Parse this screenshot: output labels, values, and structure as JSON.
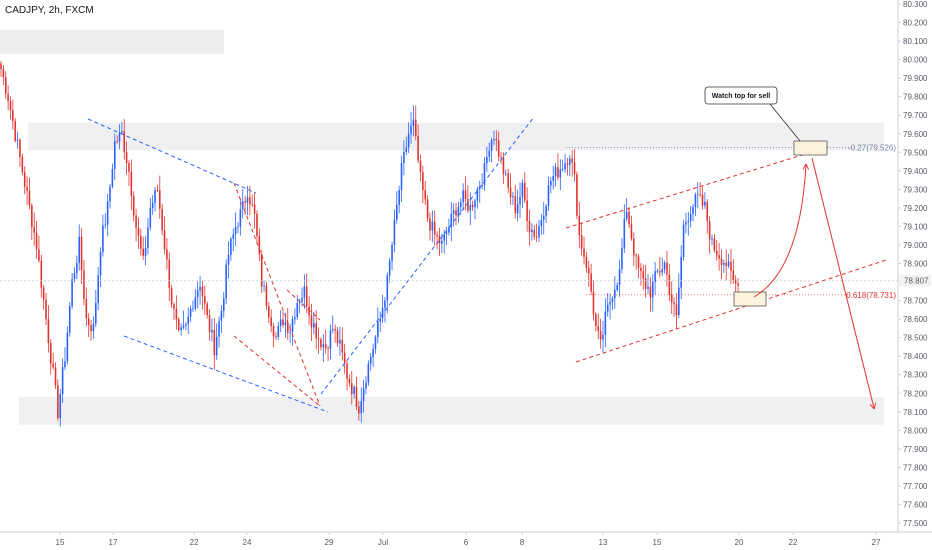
{
  "header": {
    "symbol_line": "CADJPY, 2h, FXCM"
  },
  "annotations": {
    "watch_note": "Watch top for sell",
    "fib_upper": "-0.27(79.526)",
    "fib_lower": "0.618(78.731)",
    "price_tag": "78.807"
  },
  "colors": {
    "bull": "#2962ff",
    "bear": "#e0342f",
    "zone": "#f0f0f2",
    "blue_trend": "#2962ff",
    "red_trend": "#e0342f",
    "note_fill": "#fdf3dc",
    "price_tag_bg": "#f2f2f2"
  },
  "chart_data": {
    "type": "candlestick",
    "y_axis": {
      "ticks": [
        "77.500",
        "77.600",
        "77.700",
        "77.800",
        "77.900",
        "78.000",
        "78.100",
        "78.200",
        "78.300",
        "78.400",
        "78.500",
        "78.600",
        "78.700",
        "78.800",
        "78.900",
        "79.000",
        "79.100",
        "79.200",
        "79.300",
        "79.400",
        "79.500",
        "79.600",
        "79.700",
        "79.800",
        "79.900",
        "80.000",
        "80.100",
        "80.200",
        "80.300"
      ],
      "range": [
        77.45,
        80.33
      ]
    },
    "x_axis": {
      "ticks": [
        "15",
        "17",
        "22",
        "24",
        "29",
        "Jul",
        "6",
        "8",
        "13",
        "15",
        "20",
        "22",
        "27"
      ]
    },
    "swing_path": [
      [
        0,
        79.95
      ],
      [
        3,
        79.8
      ],
      [
        6,
        79.6
      ],
      [
        9,
        79.4
      ],
      [
        12,
        79.2
      ],
      [
        15,
        79.0
      ],
      [
        18,
        78.7
      ],
      [
        21,
        78.4
      ],
      [
        24,
        78.1
      ],
      [
        27,
        78.4
      ],
      [
        30,
        78.8
      ],
      [
        33,
        79.0
      ],
      [
        36,
        78.6
      ],
      [
        39,
        78.55
      ],
      [
        42,
        79.0
      ],
      [
        45,
        79.2
      ],
      [
        48,
        79.55
      ],
      [
        51,
        79.6
      ],
      [
        54,
        79.4
      ],
      [
        57,
        79.1
      ],
      [
        60,
        78.9
      ],
      [
        63,
        79.2
      ],
      [
        66,
        79.3
      ],
      [
        69,
        79.0
      ],
      [
        72,
        78.7
      ],
      [
        75,
        78.5
      ],
      [
        78,
        78.55
      ],
      [
        81,
        78.7
      ],
      [
        84,
        78.8
      ],
      [
        87,
        78.6
      ],
      [
        90,
        78.45
      ],
      [
        93,
        78.65
      ],
      [
        96,
        78.95
      ],
      [
        99,
        79.1
      ],
      [
        102,
        79.2
      ],
      [
        104,
        79.3
      ],
      [
        107,
        79.15
      ],
      [
        110,
        78.8
      ],
      [
        113,
        78.65
      ],
      [
        116,
        78.5
      ],
      [
        119,
        78.6
      ],
      [
        122,
        78.55
      ],
      [
        125,
        78.7
      ],
      [
        128,
        78.75
      ],
      [
        131,
        78.6
      ],
      [
        134,
        78.5
      ],
      [
        137,
        78.45
      ],
      [
        140,
        78.55
      ],
      [
        143,
        78.45
      ],
      [
        146,
        78.3
      ],
      [
        149,
        78.2
      ],
      [
        151,
        78.13
      ],
      [
        154,
        78.3
      ],
      [
        157,
        78.45
      ],
      [
        160,
        78.6
      ],
      [
        163,
        78.8
      ],
      [
        166,
        79.1
      ],
      [
        169,
        79.4
      ],
      [
        172,
        79.6
      ],
      [
        174,
        79.65
      ],
      [
        177,
        79.35
      ],
      [
        180,
        79.15
      ],
      [
        183,
        79.05
      ],
      [
        186,
        79.0
      ],
      [
        189,
        79.1
      ],
      [
        192,
        79.2
      ],
      [
        195,
        79.25
      ],
      [
        198,
        79.2
      ],
      [
        201,
        79.3
      ],
      [
        204,
        79.4
      ],
      [
        206,
        79.55
      ],
      [
        208,
        79.6
      ],
      [
        211,
        79.45
      ],
      [
        214,
        79.3
      ],
      [
        217,
        79.2
      ],
      [
        220,
        79.3
      ],
      [
        223,
        79.1
      ],
      [
        226,
        79.05
      ],
      [
        229,
        79.2
      ],
      [
        232,
        79.35
      ],
      [
        235,
        79.4
      ],
      [
        238,
        79.45
      ],
      [
        240,
        79.5
      ],
      [
        242,
        79.35
      ],
      [
        244,
        79.05
      ],
      [
        247,
        78.9
      ],
      [
        249,
        78.75
      ],
      [
        251,
        78.55
      ],
      [
        253,
        78.45
      ],
      [
        255,
        78.6
      ],
      [
        258,
        78.75
      ],
      [
        261,
        78.85
      ],
      [
        263,
        79.1
      ],
      [
        264,
        79.2
      ],
      [
        266,
        79.05
      ],
      [
        268,
        78.9
      ],
      [
        271,
        78.8
      ],
      [
        274,
        78.75
      ],
      [
        277,
        78.85
      ],
      [
        280,
        78.9
      ],
      [
        283,
        78.7
      ],
      [
        285,
        78.6
      ],
      [
        288,
        79.1
      ],
      [
        291,
        79.2
      ],
      [
        294,
        79.25
      ],
      [
        297,
        79.2
      ],
      [
        300,
        79.0
      ],
      [
        303,
        78.95
      ],
      [
        306,
        78.9
      ],
      [
        309,
        78.8
      ],
      [
        311,
        78.78
      ]
    ],
    "zones": [
      {
        "name": "resistance-zone",
        "from": 79.51,
        "to": 79.66
      },
      {
        "name": "support-zone",
        "from": 78.03,
        "to": 78.18
      }
    ],
    "fib_levels": [
      {
        "label": "-0.27(79.526)",
        "value": 79.526
      },
      {
        "label": "0.618(78.731)",
        "value": 78.731
      }
    ],
    "last_price": 78.807
  }
}
